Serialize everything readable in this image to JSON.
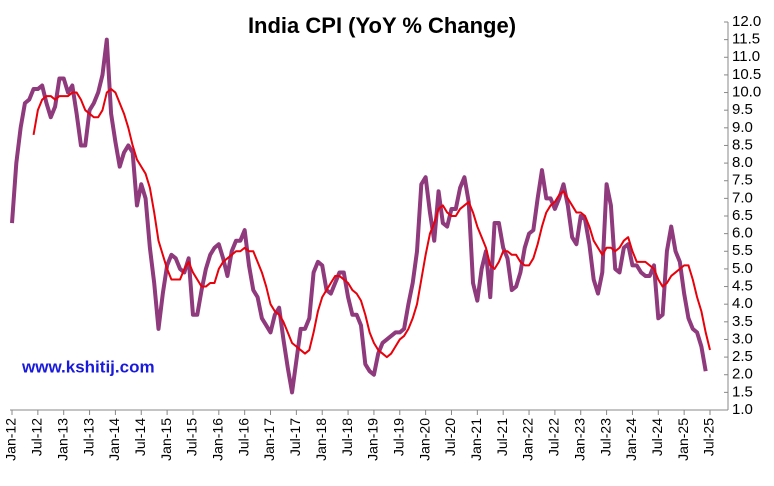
{
  "chart_data": {
    "type": "line",
    "title": "India CPI (YoY % Change)",
    "annotation": "www.kshitij.com",
    "categories": [
      "Jan-12",
      null,
      null,
      null,
      null,
      null,
      "Jul-12",
      null,
      null,
      null,
      null,
      null,
      "Jan-13",
      null,
      null,
      null,
      null,
      null,
      "Jul-13",
      null,
      null,
      null,
      null,
      null,
      "Jan-14",
      null,
      null,
      null,
      null,
      null,
      "Jul-14",
      null,
      null,
      null,
      null,
      null,
      "Jan-15",
      null,
      null,
      null,
      null,
      null,
      "Jul-15",
      null,
      null,
      null,
      null,
      null,
      "Jan-16",
      null,
      null,
      null,
      null,
      null,
      "Jul-16",
      null,
      null,
      null,
      null,
      null,
      "Jan-17",
      null,
      null,
      null,
      null,
      null,
      "Jul-17",
      null,
      null,
      null,
      null,
      null,
      "Jan-18",
      null,
      null,
      null,
      null,
      null,
      "Jul-18",
      null,
      null,
      null,
      null,
      null,
      "Jan-19",
      null,
      null,
      null,
      null,
      null,
      "Jul-19",
      null,
      null,
      null,
      null,
      null,
      "Jan-20",
      null,
      null,
      null,
      null,
      null,
      "Jul-20",
      null,
      null,
      null,
      null,
      null,
      "Jan-21",
      null,
      null,
      null,
      null,
      null,
      "Jul-21",
      null,
      null,
      null,
      null,
      null,
      "Jan-22",
      null,
      null,
      null,
      null,
      null,
      "Jul-22",
      null,
      null,
      null,
      null,
      null,
      "Jan-23",
      null,
      null,
      null,
      null,
      null,
      "Jul-23",
      null,
      null,
      null,
      null,
      null,
      "Jan-24",
      null,
      null,
      null,
      null,
      null,
      "Jul-24",
      null,
      null,
      null,
      null,
      null,
      "Jan-25",
      null,
      null,
      null,
      null,
      null,
      "Jul-25"
    ],
    "series": [
      {
        "color": "#8e3a7c",
        "width": 4,
        "values": [
          6.3,
          8.0,
          9.0,
          9.7,
          9.8,
          10.1,
          10.1,
          10.2,
          9.7,
          9.3,
          9.6,
          10.4,
          10.4,
          10.0,
          10.2,
          9.4,
          8.5,
          8.5,
          9.5,
          9.7,
          10.0,
          10.5,
          11.5,
          9.4,
          8.6,
          7.9,
          8.3,
          8.5,
          8.3,
          6.8,
          7.4,
          7.0,
          5.6,
          4.6,
          3.3,
          4.3,
          5.1,
          5.4,
          5.3,
          5.0,
          4.9,
          5.3,
          3.7,
          3.7,
          4.4,
          5.0,
          5.4,
          5.6,
          5.7,
          5.3,
          4.8,
          5.5,
          5.8,
          5.8,
          6.1,
          5.1,
          4.4,
          4.2,
          3.6,
          3.4,
          3.2,
          3.7,
          3.9,
          3.0,
          2.2,
          1.5,
          2.4,
          3.3,
          3.3,
          3.6,
          4.9,
          5.2,
          5.1,
          4.4,
          4.3,
          4.6,
          4.9,
          4.9,
          4.2,
          3.7,
          3.7,
          3.4,
          2.3,
          2.1,
          2.0,
          2.6,
          2.9,
          3.0,
          3.1,
          3.2,
          3.2,
          3.3,
          4.0,
          4.6,
          5.5,
          7.4,
          7.6,
          6.6,
          5.8,
          7.2,
          6.3,
          6.2,
          6.7,
          6.7,
          7.3,
          7.6,
          6.9,
          4.6,
          4.1,
          5.0,
          5.5,
          4.2,
          6.3,
          6.3,
          5.6,
          5.3,
          4.4,
          4.5,
          4.9,
          5.6,
          6.0,
          6.1,
          7.0,
          7.8,
          7.0,
          7.0,
          6.7,
          7.0,
          7.4,
          6.8,
          5.9,
          5.7,
          6.5,
          6.4,
          5.7,
          4.7,
          4.3,
          4.9,
          7.4,
          6.8,
          5.0,
          4.9,
          5.6,
          5.7,
          5.1,
          5.1,
          4.9,
          4.8,
          4.8,
          5.1,
          3.6,
          3.7,
          5.5,
          6.2,
          5.5,
          5.2,
          4.3,
          3.6,
          3.3,
          3.2,
          2.8,
          2.1,
          null
        ]
      },
      {
        "color": "#e8000b",
        "width": 2,
        "values": [
          null,
          null,
          null,
          null,
          null,
          8.8,
          9.5,
          9.8,
          9.9,
          9.9,
          9.8,
          9.9,
          9.9,
          9.9,
          10.0,
          10.0,
          9.8,
          9.5,
          9.4,
          9.3,
          9.3,
          9.5,
          10.0,
          10.1,
          10.0,
          9.7,
          9.4,
          9.0,
          8.5,
          8.1,
          7.9,
          7.7,
          7.3,
          6.6,
          5.8,
          5.4,
          5.0,
          4.7,
          4.7,
          4.7,
          5.0,
          5.2,
          4.9,
          4.7,
          4.5,
          4.5,
          4.6,
          4.6,
          5.0,
          5.2,
          5.3,
          5.4,
          5.5,
          5.5,
          5.6,
          5.5,
          5.5,
          5.2,
          4.9,
          4.5,
          4.0,
          3.8,
          3.7,
          3.5,
          3.2,
          2.9,
          2.8,
          2.7,
          2.6,
          2.7,
          3.2,
          3.8,
          4.2,
          4.4,
          4.6,
          4.8,
          4.8,
          4.7,
          4.6,
          4.4,
          4.3,
          4.1,
          3.7,
          3.2,
          2.9,
          2.7,
          2.6,
          2.5,
          2.6,
          2.8,
          3.0,
          3.1,
          3.3,
          3.6,
          4.0,
          4.7,
          5.4,
          6.0,
          6.3,
          6.7,
          6.8,
          6.6,
          6.5,
          6.5,
          6.7,
          6.8,
          6.9,
          6.6,
          6.2,
          5.9,
          5.6,
          5.1,
          5.0,
          5.2,
          5.5,
          5.5,
          5.4,
          5.4,
          5.2,
          5.1,
          5.1,
          5.3,
          5.7,
          6.2,
          6.6,
          6.8,
          6.9,
          7.1,
          7.2,
          7.0,
          6.8,
          6.6,
          6.6,
          6.5,
          6.2,
          5.8,
          5.6,
          5.4,
          5.6,
          5.6,
          5.5,
          5.6,
          5.8,
          5.9,
          5.5,
          5.2,
          5.2,
          5.2,
          5.1,
          5.0,
          4.7,
          4.5,
          4.6,
          4.8,
          4.9,
          5.0,
          5.1,
          5.1,
          4.7,
          4.2,
          3.8,
          3.2,
          2.7
        ]
      }
    ],
    "ylim": [
      1.0,
      12.0
    ],
    "yticks": [
      {
        "value": 1,
        "label": "1.0"
      },
      1.5,
      {
        "value": 2,
        "label": "2.0"
      },
      2.5,
      {
        "value": 3,
        "label": "3.0"
      },
      3.5,
      {
        "value": 4,
        "label": "4.0"
      },
      4.5,
      {
        "value": 5,
        "label": "5.0"
      },
      5.5,
      {
        "value": 6,
        "label": "6.0"
      },
      6.5,
      {
        "value": 7,
        "label": "7.0"
      },
      7.5,
      {
        "value": 8,
        "label": "8.0"
      },
      8.5,
      {
        "value": 9,
        "label": "9.0"
      },
      9.5,
      {
        "value": 10,
        "label": "10.0"
      },
      10.5,
      {
        "value": 11,
        "label": "11.0"
      },
      11.5,
      {
        "value": 12,
        "label": "12.0"
      }
    ],
    "grid": false
  }
}
